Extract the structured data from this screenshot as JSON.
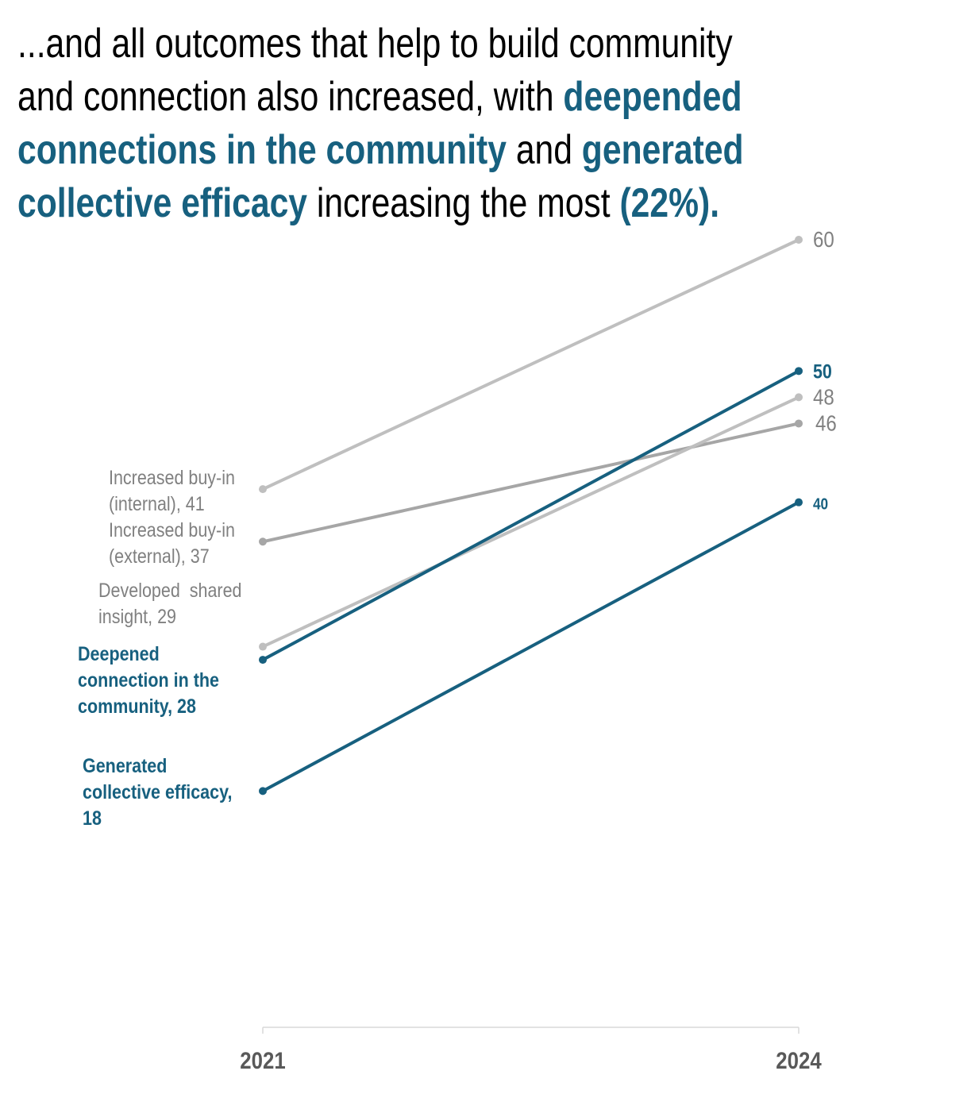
{
  "title": {
    "part1": "...and all outcomes that help to build community and connection also increased, with ",
    "hl1": "deepended connections in the community",
    "part2": " and ",
    "hl2": "generated collective efficacy",
    "part3": " increasing the most ",
    "hl3": "(22%)."
  },
  "chart_data": {
    "type": "line",
    "subtype": "slope",
    "categories": [
      "2021",
      "2024"
    ],
    "ylim": [
      0,
      60
    ],
    "grid": false,
    "colors": {
      "highlight": "#17607f",
      "muted": "#bfbfbf",
      "muted_dark": "#a6a6a6",
      "label_gray": "#808080",
      "axis_label": "#595959"
    },
    "series": [
      {
        "name": "Increased buy-in (internal)",
        "values": [
          41,
          60
        ],
        "left_label": [
          "Increased buy-in",
          "(internal), 41"
        ],
        "right_label": "60",
        "color": "#bfbfbf",
        "highlight": false
      },
      {
        "name": "Increased buy-in (external)",
        "values": [
          37,
          46
        ],
        "left_label": [
          "Increased buy-in",
          "(external), 37"
        ],
        "right_label": "46",
        "color": "#a6a6a6",
        "highlight": false
      },
      {
        "name": "Developed shared insight",
        "values": [
          29,
          48
        ],
        "left_label": [
          "Developed  shared",
          "insight, 29"
        ],
        "right_label": "48",
        "color": "#bfbfbf",
        "highlight": false
      },
      {
        "name": "Deepened connection in the community",
        "values": [
          28,
          50
        ],
        "left_label": [
          "Deepened",
          "connection in the",
          "community, 28"
        ],
        "right_label": "50",
        "color": "#17607f",
        "highlight": true
      },
      {
        "name": "Generated collective efficacy",
        "values": [
          18,
          40
        ],
        "left_label": [
          "Generated",
          "collective efficacy,",
          "18"
        ],
        "right_label": "40",
        "color": "#17607f",
        "highlight": true
      }
    ]
  }
}
